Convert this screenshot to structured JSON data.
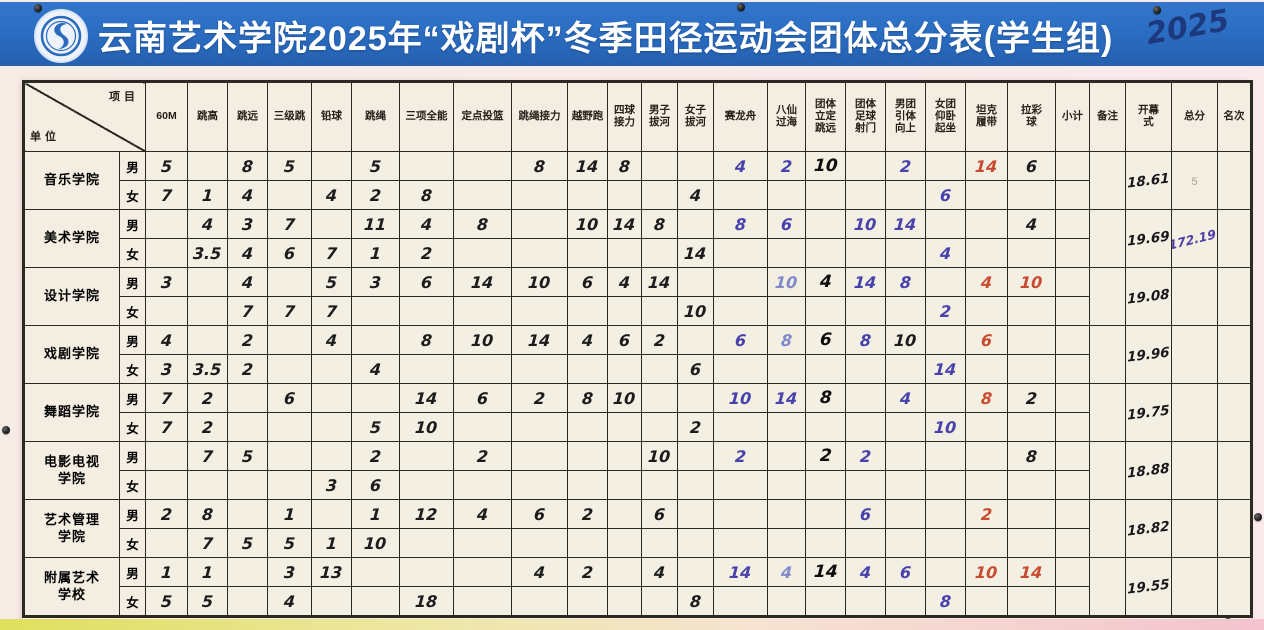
{
  "banner": {
    "title": "云南艺术学院2025年“戏剧杯”冬季田径运动会团体总分表(学生组)",
    "year_scribble": "2025",
    "logo": "yunnan-arts-university-emblem"
  },
  "colors": {
    "banner_blue": "#2a6bbf",
    "board_bg": "#f3eee1",
    "ink_black": "#1c1c1c",
    "ink_blue": "#4741ab",
    "ink_pale_blue": "#8089c9",
    "ink_red": "#c84a30",
    "ink_purple": "#4d3fa3",
    "pencil_grey": "#a8a195"
  },
  "table": {
    "corner_top": "项目",
    "corner_bottom": "单位",
    "gender_labels": [
      "男",
      "女"
    ],
    "columns": [
      [
        "60M"
      ],
      [
        "跳高"
      ],
      [
        "跳远"
      ],
      [
        "三级跳"
      ],
      [
        "铅球"
      ],
      [
        "跳绳"
      ],
      [
        "三项全能"
      ],
      [
        "定点投篮"
      ],
      [
        "跳绳接力"
      ],
      [
        "越野跑"
      ],
      [
        "四球",
        "接力"
      ],
      [
        "男子",
        "拔河"
      ],
      [
        "女子",
        "拔河"
      ],
      [
        "赛龙舟"
      ],
      [
        "八仙",
        "过海"
      ],
      [
        "团体",
        "立定",
        "跳远"
      ],
      [
        "团体",
        "足球",
        "射门"
      ],
      [
        "男团",
        "引体",
        "向上"
      ],
      [
        "女团",
        "仰卧",
        "起坐"
      ],
      [
        "坦克",
        "履带"
      ],
      [
        "拉彩",
        "球"
      ],
      [
        "小计"
      ],
      [
        "备注"
      ],
      [
        "开幕",
        "式"
      ],
      [
        "总分"
      ],
      [
        "名次"
      ]
    ],
    "departments": [
      {
        "name": [
          "音乐学院"
        ],
        "male": [
          {
            "i": 0,
            "v": "5"
          },
          {
            "i": 2,
            "v": "8"
          },
          {
            "i": 3,
            "v": "5"
          },
          {
            "i": 5,
            "v": "5"
          },
          {
            "i": 8,
            "v": "8"
          },
          {
            "i": 9,
            "v": "14"
          },
          {
            "i": 10,
            "v": "8"
          },
          {
            "i": 13,
            "v": "4",
            "c": "blue"
          },
          {
            "i": 14,
            "v": "2",
            "c": "blue"
          },
          {
            "i": 15,
            "v": "10",
            "c": "marker"
          },
          {
            "i": 17,
            "v": "2",
            "c": "blue"
          },
          {
            "i": 19,
            "v": "14",
            "c": "red"
          },
          {
            "i": 20,
            "v": "6"
          }
        ],
        "female": [
          {
            "i": 0,
            "v": "7"
          },
          {
            "i": 1,
            "v": "1"
          },
          {
            "i": 2,
            "v": "4"
          },
          {
            "i": 4,
            "v": "4"
          },
          {
            "i": 5,
            "v": "2"
          },
          {
            "i": 6,
            "v": "8"
          },
          {
            "i": 12,
            "v": "4"
          },
          {
            "i": 18,
            "v": "6",
            "c": "blue"
          }
        ],
        "remark": "",
        "opening": "18.61",
        "total": "5",
        "total_c": "pencil",
        "rank": ""
      },
      {
        "name": [
          "美术学院"
        ],
        "male": [
          {
            "i": 1,
            "v": "4"
          },
          {
            "i": 2,
            "v": "3"
          },
          {
            "i": 3,
            "v": "7"
          },
          {
            "i": 5,
            "v": "11"
          },
          {
            "i": 6,
            "v": "4"
          },
          {
            "i": 7,
            "v": "8"
          },
          {
            "i": 9,
            "v": "10"
          },
          {
            "i": 10,
            "v": "14"
          },
          {
            "i": 11,
            "v": "8"
          },
          {
            "i": 13,
            "v": "8",
            "c": "blue"
          },
          {
            "i": 14,
            "v": "6",
            "c": "blue"
          },
          {
            "i": 16,
            "v": "10",
            "c": "blue"
          },
          {
            "i": 17,
            "v": "14",
            "c": "blue"
          },
          {
            "i": 20,
            "v": "4"
          }
        ],
        "female": [
          {
            "i": 1,
            "v": "3.5"
          },
          {
            "i": 2,
            "v": "4"
          },
          {
            "i": 3,
            "v": "6"
          },
          {
            "i": 4,
            "v": "7"
          },
          {
            "i": 5,
            "v": "1"
          },
          {
            "i": 6,
            "v": "2"
          },
          {
            "i": 12,
            "v": "14"
          },
          {
            "i": 18,
            "v": "4",
            "c": "blue"
          }
        ],
        "remark": "",
        "opening": "19.69",
        "total": "172.19",
        "total_c": "purple",
        "rank": ""
      },
      {
        "name": [
          "设计学院"
        ],
        "male": [
          {
            "i": 0,
            "v": "3"
          },
          {
            "i": 2,
            "v": "4"
          },
          {
            "i": 4,
            "v": "5"
          },
          {
            "i": 5,
            "v": "3"
          },
          {
            "i": 6,
            "v": "6"
          },
          {
            "i": 7,
            "v": "14"
          },
          {
            "i": 8,
            "v": "10"
          },
          {
            "i": 9,
            "v": "6"
          },
          {
            "i": 10,
            "v": "4"
          },
          {
            "i": 11,
            "v": "14"
          },
          {
            "i": 14,
            "v": "10",
            "c": "pale"
          },
          {
            "i": 15,
            "v": "4",
            "c": "marker"
          },
          {
            "i": 16,
            "v": "14",
            "c": "blue"
          },
          {
            "i": 17,
            "v": "8",
            "c": "blue"
          },
          {
            "i": 19,
            "v": "4",
            "c": "red"
          },
          {
            "i": 20,
            "v": "10",
            "c": "red"
          }
        ],
        "female": [
          {
            "i": 2,
            "v": "7"
          },
          {
            "i": 3,
            "v": "7"
          },
          {
            "i": 4,
            "v": "7"
          },
          {
            "i": 12,
            "v": "10"
          },
          {
            "i": 18,
            "v": "2",
            "c": "blue"
          }
        ],
        "remark": "",
        "opening": "19.08",
        "total": "",
        "rank": ""
      },
      {
        "name": [
          "戏剧学院"
        ],
        "male": [
          {
            "i": 0,
            "v": "4"
          },
          {
            "i": 2,
            "v": "2"
          },
          {
            "i": 4,
            "v": "4"
          },
          {
            "i": 6,
            "v": "8"
          },
          {
            "i": 7,
            "v": "10"
          },
          {
            "i": 8,
            "v": "14"
          },
          {
            "i": 9,
            "v": "4"
          },
          {
            "i": 10,
            "v": "6"
          },
          {
            "i": 11,
            "v": "2"
          },
          {
            "i": 13,
            "v": "6",
            "c": "blue"
          },
          {
            "i": 14,
            "v": "8",
            "c": "pale"
          },
          {
            "i": 15,
            "v": "6",
            "c": "marker"
          },
          {
            "i": 16,
            "v": "8",
            "c": "blue"
          },
          {
            "i": 17,
            "v": "10"
          },
          {
            "i": 19,
            "v": "6",
            "c": "red"
          }
        ],
        "female": [
          {
            "i": 0,
            "v": "3"
          },
          {
            "i": 1,
            "v": "3.5"
          },
          {
            "i": 2,
            "v": "2"
          },
          {
            "i": 5,
            "v": "4"
          },
          {
            "i": 12,
            "v": "6"
          },
          {
            "i": 18,
            "v": "14",
            "c": "blue"
          }
        ],
        "remark": "",
        "opening": "19.96",
        "total": "",
        "rank": ""
      },
      {
        "name": [
          "舞蹈学院"
        ],
        "male": [
          {
            "i": 0,
            "v": "7"
          },
          {
            "i": 1,
            "v": "2"
          },
          {
            "i": 3,
            "v": "6"
          },
          {
            "i": 6,
            "v": "14"
          },
          {
            "i": 7,
            "v": "6"
          },
          {
            "i": 8,
            "v": "2"
          },
          {
            "i": 9,
            "v": "8"
          },
          {
            "i": 10,
            "v": "10"
          },
          {
            "i": 13,
            "v": "10",
            "c": "blue"
          },
          {
            "i": 14,
            "v": "14",
            "c": "blue"
          },
          {
            "i": 15,
            "v": "8",
            "c": "marker"
          },
          {
            "i": 17,
            "v": "4",
            "c": "blue"
          },
          {
            "i": 19,
            "v": "8",
            "c": "red"
          },
          {
            "i": 20,
            "v": "2"
          }
        ],
        "female": [
          {
            "i": 0,
            "v": "7"
          },
          {
            "i": 1,
            "v": "2"
          },
          {
            "i": 5,
            "v": "5"
          },
          {
            "i": 6,
            "v": "10"
          },
          {
            "i": 12,
            "v": "2"
          },
          {
            "i": 18,
            "v": "10",
            "c": "blue"
          }
        ],
        "remark": "",
        "opening": "19.75",
        "total": "",
        "rank": ""
      },
      {
        "name": [
          "电影电视",
          "学院"
        ],
        "male": [
          {
            "i": 1,
            "v": "7"
          },
          {
            "i": 2,
            "v": "5"
          },
          {
            "i": 5,
            "v": "2"
          },
          {
            "i": 7,
            "v": "2"
          },
          {
            "i": 11,
            "v": "10"
          },
          {
            "i": 13,
            "v": "2",
            "c": "blue"
          },
          {
            "i": 15,
            "v": "2",
            "c": "marker"
          },
          {
            "i": 16,
            "v": "2",
            "c": "blue"
          },
          {
            "i": 20,
            "v": "8"
          }
        ],
        "female": [
          {
            "i": 4,
            "v": "3"
          },
          {
            "i": 5,
            "v": "6"
          }
        ],
        "remark": "",
        "opening": "18.88",
        "total": "",
        "rank": ""
      },
      {
        "name": [
          "艺术管理",
          "学院"
        ],
        "male": [
          {
            "i": 0,
            "v": "2"
          },
          {
            "i": 1,
            "v": "8"
          },
          {
            "i": 3,
            "v": "1"
          },
          {
            "i": 5,
            "v": "1"
          },
          {
            "i": 6,
            "v": "12"
          },
          {
            "i": 7,
            "v": "4"
          },
          {
            "i": 8,
            "v": "6"
          },
          {
            "i": 9,
            "v": "2"
          },
          {
            "i": 11,
            "v": "6"
          },
          {
            "i": 16,
            "v": "6",
            "c": "blue"
          },
          {
            "i": 19,
            "v": "2",
            "c": "red"
          }
        ],
        "female": [
          {
            "i": 1,
            "v": "7"
          },
          {
            "i": 2,
            "v": "5"
          },
          {
            "i": 3,
            "v": "5"
          },
          {
            "i": 4,
            "v": "1"
          },
          {
            "i": 5,
            "v": "10"
          }
        ],
        "remark": "",
        "opening": "18.82",
        "total": "",
        "rank": ""
      },
      {
        "name": [
          "附属艺术",
          "学校"
        ],
        "male": [
          {
            "i": 0,
            "v": "1"
          },
          {
            "i": 1,
            "v": "1"
          },
          {
            "i": 3,
            "v": "3"
          },
          {
            "i": 4,
            "v": "13"
          },
          {
            "i": 8,
            "v": "4"
          },
          {
            "i": 9,
            "v": "2"
          },
          {
            "i": 11,
            "v": "4"
          },
          {
            "i": 13,
            "v": "14",
            "c": "blue"
          },
          {
            "i": 14,
            "v": "4",
            "c": "pale"
          },
          {
            "i": 15,
            "v": "14",
            "c": "marker"
          },
          {
            "i": 16,
            "v": "4",
            "c": "blue"
          },
          {
            "i": 17,
            "v": "6",
            "c": "blue"
          },
          {
            "i": 19,
            "v": "10",
            "c": "red"
          },
          {
            "i": 20,
            "v": "14",
            "c": "red"
          }
        ],
        "female": [
          {
            "i": 0,
            "v": "5"
          },
          {
            "i": 1,
            "v": "5"
          },
          {
            "i": 3,
            "v": "4"
          },
          {
            "i": 6,
            "v": "18"
          },
          {
            "i": 12,
            "v": "8"
          },
          {
            "i": 18,
            "v": "8",
            "c": "blue"
          }
        ],
        "remark": "",
        "opening": "19.55",
        "total": "",
        "rank": ""
      }
    ]
  }
}
